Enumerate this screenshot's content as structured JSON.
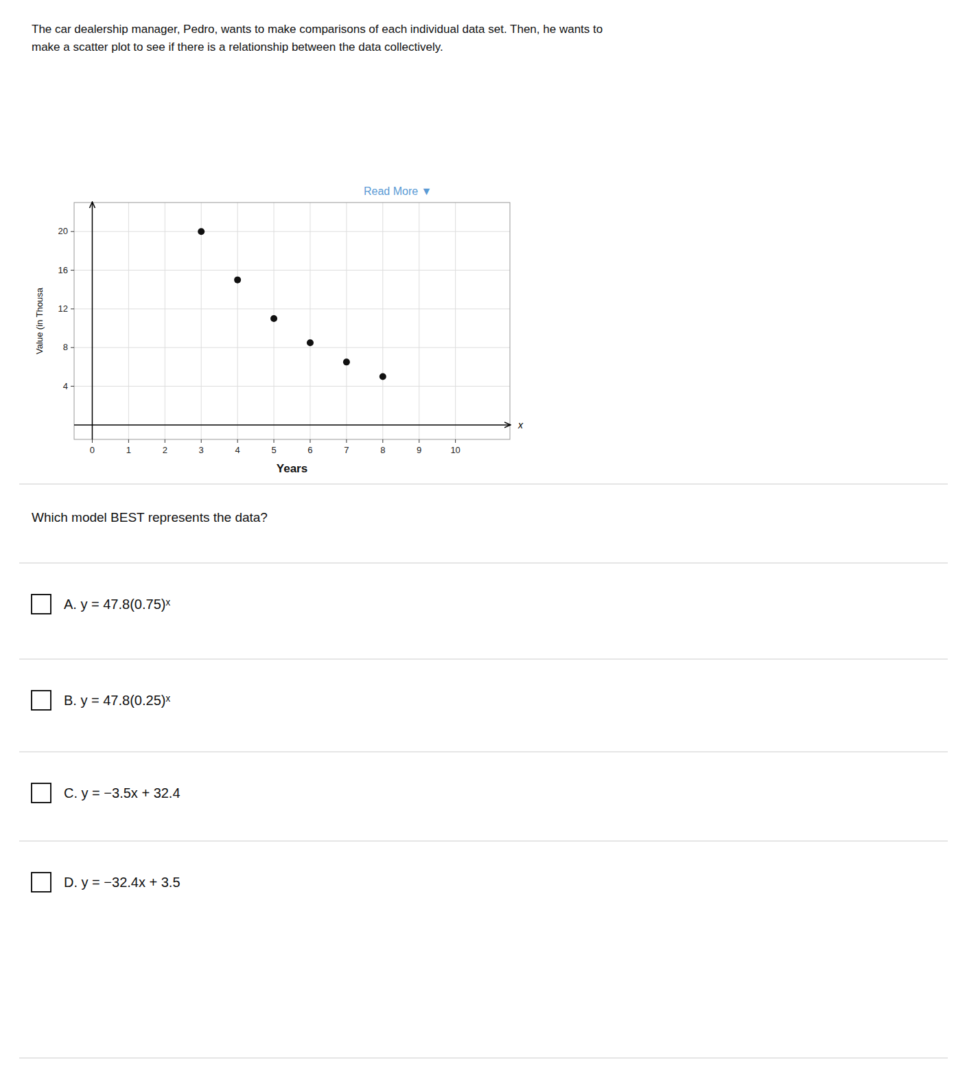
{
  "chart_data": {
    "type": "scatter",
    "title": "The car dealership manager, Pedro, wants to make comparisons of each individual data set. Then, he wants to",
    "subtitle": "make a scatter plot to see if there is a relationship between the data collectively.",
    "x": [
      3,
      4,
      5,
      6,
      7,
      8
    ],
    "values": [
      20,
      15,
      11,
      8.5,
      6.5,
      5
    ],
    "color": "#111111",
    "xlabel": "Years",
    "ylabel": "Value (in Thousa",
    "xlim": [
      -0.5,
      11.5
    ],
    "ylim": [
      -1.5,
      23.0
    ],
    "xticks": [
      0,
      1,
      2,
      3,
      4,
      5,
      6,
      7,
      8,
      9,
      10
    ],
    "yticks": [
      4,
      8,
      12,
      16,
      20
    ],
    "grid": true,
    "annotations": [
      "x",
      "Read More ▼",
      "Which model BEST represents the data?",
      "A. y = 47.8(0.75)ˣ",
      "B. y = 47.8(0.25)ˣ",
      "C. y = −3.5x + 32.4",
      "D. y = −32.4x + 3.5"
    ]
  }
}
